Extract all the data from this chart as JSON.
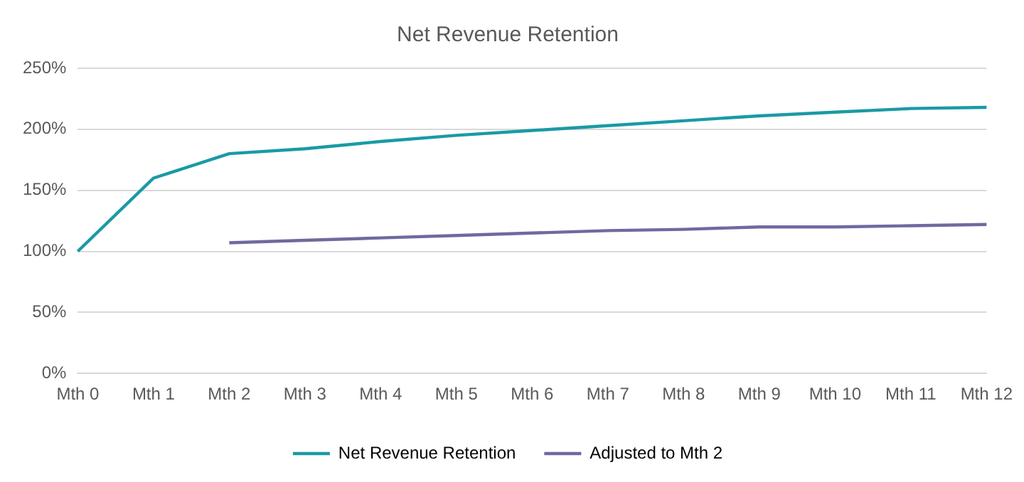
{
  "chart_data": {
    "type": "line",
    "title": "Net Revenue Retention",
    "categories": [
      "Mth 0",
      "Mth 1",
      "Mth 2",
      "Mth 3",
      "Mth 4",
      "Mth 5",
      "Mth 6",
      "Mth 7",
      "Mth 8",
      "Mth 9",
      "Mth 10",
      "Mth 11",
      "Mth 12"
    ],
    "series": [
      {
        "name": "Net Revenue Retention",
        "color": "#1a9aa5",
        "values": [
          100,
          160,
          180,
          184,
          190,
          195,
          199,
          203,
          207,
          211,
          214,
          217,
          218
        ]
      },
      {
        "name": "Adjusted to Mth 2",
        "color": "#6e6aa0",
        "values": [
          null,
          null,
          107,
          109,
          111,
          113,
          115,
          117,
          118,
          120,
          120,
          121,
          122
        ]
      }
    ],
    "ylim": [
      0,
      250
    ],
    "yticks": [
      {
        "value": 0,
        "label": "0%"
      },
      {
        "value": 50,
        "label": "50%"
      },
      {
        "value": 100,
        "label": "100%"
      },
      {
        "value": 150,
        "label": "150%"
      },
      {
        "value": 200,
        "label": "200%"
      },
      {
        "value": 250,
        "label": "250%"
      }
    ],
    "grid": "y",
    "legend": "bottom",
    "marker": "none",
    "line_style": "solid"
  }
}
